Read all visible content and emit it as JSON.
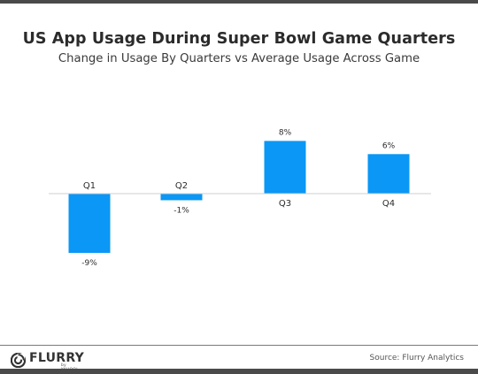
{
  "chart_data": {
    "type": "bar",
    "title": "US App Usage During Super Bowl Game Quarters",
    "subtitle": "Change in Usage By Quarters vs Average Usage Across Game",
    "categories": [
      "Q1",
      "Q2",
      "Q3",
      "Q4"
    ],
    "values": [
      -9,
      -1,
      8,
      6
    ],
    "value_labels": [
      "-9%",
      "-1%",
      "8%",
      "6%"
    ],
    "unit": "%",
    "xlabel": "",
    "ylabel": "",
    "ylim": [
      -10,
      10
    ],
    "grid": false,
    "bar_color": "#0a97f5",
    "baseline_color": "#cfcfcf"
  },
  "footer": {
    "brand": "FLURRY",
    "brand_sub": "by YAHOO!",
    "source": "Source: Flurry Analytics"
  },
  "colors": {
    "bar": "#0a97f5",
    "text": "#2b2b2b",
    "frame": "#4a4a4a"
  }
}
